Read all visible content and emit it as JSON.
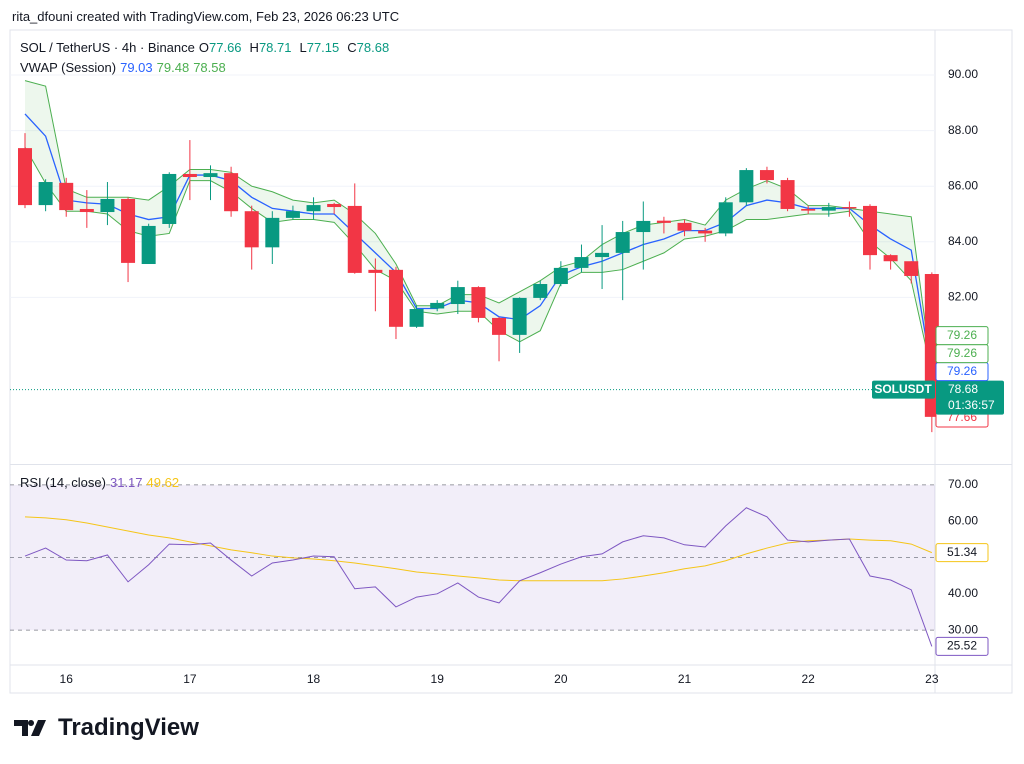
{
  "header": {
    "text": "rita_dfouni created with TradingView.com, Feb 23, 2026 06:23 UTC"
  },
  "footer": {
    "brand": "TradingView"
  },
  "chart_data": [
    {
      "type": "candlestick",
      "title": "SOL / TetherUS · 4h · Binance",
      "legend_ohlc": [
        {
          "key": "O",
          "value": 77.66
        },
        {
          "key": "H",
          "value": 78.71
        },
        {
          "key": "L",
          "value": 77.15
        },
        {
          "key": "C",
          "value": 78.68
        }
      ],
      "x": [
        null,
        null,
        "16",
        null,
        null,
        null,
        null,
        null,
        "17",
        null,
        null,
        null,
        null,
        null,
        "18",
        null,
        null,
        null,
        null,
        null,
        "19",
        null,
        null,
        null,
        null,
        null,
        "20",
        null,
        null,
        null,
        null,
        null,
        "21",
        null,
        null,
        null,
        null,
        null,
        "22",
        null,
        null,
        null,
        null,
        null,
        "23"
      ],
      "open": [
        87.37,
        85.32,
        86.12,
        85.18,
        85.07,
        85.54,
        83.2,
        84.64,
        86.44,
        86.33,
        86.47,
        85.1,
        83.8,
        84.86,
        85.1,
        85.36,
        85.29,
        82.99,
        82.99,
        80.94,
        81.6,
        81.76,
        82.37,
        81.26,
        80.65,
        81.98,
        82.48,
        83.06,
        83.45,
        83.6,
        84.35,
        84.76,
        84.68,
        84.4,
        84.3,
        85.42,
        86.58,
        86.22,
        85.18,
        85.12,
        85.25,
        85.29,
        83.52,
        83.3,
        82.84
      ],
      "high": [
        87.91,
        86.25,
        86.3,
        85.86,
        86.15,
        85.6,
        84.65,
        86.5,
        87.66,
        86.75,
        86.7,
        85.3,
        85.1,
        85.3,
        85.6,
        85.4,
        86.1,
        83.4,
        83.1,
        81.7,
        81.9,
        82.6,
        82.4,
        81.3,
        82.0,
        82.6,
        83.3,
        83.9,
        84.6,
        84.75,
        85.45,
        84.9,
        84.8,
        84.5,
        85.6,
        86.65,
        86.7,
        86.3,
        85.3,
        85.4,
        85.45,
        85.35,
        83.55,
        83.3,
        82.9
      ],
      "low": [
        85.21,
        85.1,
        84.9,
        84.5,
        84.6,
        82.55,
        83.2,
        84.5,
        85.5,
        85.5,
        84.9,
        83.0,
        83.2,
        84.8,
        84.8,
        85.0,
        82.85,
        81.5,
        80.5,
        80.9,
        81.5,
        81.4,
        81.1,
        79.7,
        80.0,
        81.9,
        82.4,
        82.9,
        82.3,
        81.9,
        83.0,
        84.3,
        84.2,
        84.0,
        84.2,
        85.3,
        86.1,
        85.1,
        85.0,
        84.9,
        84.9,
        83.0,
        83.0,
        82.5,
        77.15
      ],
      "close": [
        85.32,
        86.15,
        85.14,
        85.07,
        85.54,
        83.24,
        84.57,
        86.44,
        86.33,
        86.47,
        85.1,
        83.8,
        84.86,
        85.1,
        85.32,
        85.25,
        82.88,
        82.88,
        80.94,
        81.58,
        81.8,
        82.37,
        81.26,
        80.65,
        81.98,
        82.48,
        83.06,
        83.45,
        83.6,
        84.35,
        84.75,
        84.68,
        84.4,
        84.3,
        85.42,
        86.58,
        86.22,
        85.18,
        85.12,
        85.25,
        85.2,
        83.52,
        83.3,
        82.77,
        77.7
      ],
      "up_color": "#089981",
      "down_color": "#f23645",
      "indicator_label": "VWAP (Session)",
      "indicator_values": [
        79.03,
        79.48,
        78.58
      ],
      "series": [
        {
          "color": "#2962ff",
          "values": [
            88.6,
            87.8,
            85.5,
            85.4,
            85.35,
            85.0,
            84.8,
            84.9,
            86.4,
            86.4,
            86.2,
            85.6,
            85.2,
            85.1,
            85.0,
            85.0,
            84.3,
            83.6,
            82.9,
            81.6,
            81.6,
            81.9,
            81.8,
            81.3,
            81.2,
            81.7,
            82.8,
            83.1,
            83.3,
            83.6,
            83.9,
            84.1,
            84.4,
            84.4,
            84.7,
            85.3,
            85.5,
            85.4,
            85.2,
            85.2,
            85.2,
            84.6,
            84.1,
            83.7,
            79.26
          ]
        },
        {
          "color": "#4caf50",
          "values": [
            89.8,
            89.6,
            85.9,
            85.6,
            85.6,
            85.6,
            85.5,
            86.0,
            86.6,
            86.6,
            86.5,
            86.0,
            85.8,
            85.5,
            85.4,
            85.5,
            85.0,
            84.3,
            83.2,
            81.7,
            81.7,
            82.1,
            82.1,
            81.8,
            82.2,
            82.6,
            83.1,
            83.3,
            83.9,
            84.3,
            84.6,
            84.7,
            84.8,
            84.6,
            85.5,
            85.9,
            86.2,
            85.9,
            85.3,
            85.3,
            85.2,
            85.1,
            85.0,
            84.9,
            79.26
          ]
        },
        {
          "color": "#4caf50",
          "values": [
            87.4,
            86.1,
            85.1,
            85.1,
            85.0,
            84.4,
            84.2,
            84.3,
            86.2,
            86.2,
            85.8,
            85.2,
            84.7,
            84.8,
            84.8,
            84.7,
            83.9,
            83.0,
            82.6,
            81.5,
            81.4,
            81.5,
            81.5,
            80.8,
            80.4,
            80.8,
            82.5,
            82.9,
            82.9,
            83.0,
            83.3,
            83.6,
            84.1,
            84.2,
            84.4,
            84.8,
            84.8,
            84.9,
            85.0,
            85.0,
            85.1,
            84.0,
            83.4,
            82.6,
            79.26
          ]
        }
      ],
      "band_fill": "rgba(76,175,80,0.1)",
      "ylim": [
        76.04,
        91.62
      ],
      "yticks": [
        {
          "value": 82,
          "label": "82.00"
        },
        {
          "value": 84,
          "label": "84.00"
        },
        {
          "value": 86,
          "label": "86.00"
        },
        {
          "value": 88,
          "label": "88.00"
        },
        {
          "value": 90,
          "label": "90.00"
        }
      ],
      "price_tags": [
        {
          "value": 79.26,
          "color": "#4caf50"
        },
        {
          "value": 79.26,
          "color": "#4caf50"
        },
        {
          "value": 79.26,
          "color": "#2962ff"
        }
      ],
      "last_price": {
        "symbol": "SOLUSDT",
        "value": 78.68,
        "countdown": "01:36:57",
        "color": "#089981"
      },
      "open_tag": {
        "value": 77.66,
        "color": "#f23645"
      }
    },
    {
      "type": "line",
      "indicator_label": "RSI (14, close)",
      "indicator_values": [
        31.17,
        49.62
      ],
      "series": [
        {
          "color": "#7e57c2",
          "values": [
            50.4,
            52.6,
            49.3,
            49.1,
            50.7,
            43.3,
            48,
            53.7,
            53.5,
            54,
            49.3,
            44.9,
            48.5,
            49.3,
            50.4,
            50.2,
            41.4,
            41.9,
            36.4,
            39.1,
            40,
            43,
            39.1,
            37.5,
            43.6,
            45.8,
            48.2,
            50.2,
            51,
            54.3,
            56,
            55.4,
            53.5,
            52.9,
            58.7,
            63.7,
            61.2,
            54.8,
            54.3,
            54.8,
            55.1,
            44.9,
            43.8,
            41.1,
            25.52
          ]
        },
        {
          "color": "#f5c518",
          "values": [
            61.2,
            60.9,
            60.4,
            59.5,
            58.4,
            57.3,
            56.2,
            55.4,
            54.3,
            53.2,
            52.1,
            51.3,
            50.4,
            49.9,
            49.6,
            49.1,
            48.5,
            47.7,
            46.9,
            46,
            45.5,
            44.9,
            44.4,
            43.8,
            43.6,
            43.6,
            43.6,
            43.6,
            43.6,
            44.1,
            44.9,
            45.8,
            46.9,
            47.7,
            49.1,
            51,
            52.6,
            54,
            54.6,
            54.8,
            55.1,
            54.8,
            54.6,
            53.7,
            51.34
          ]
        }
      ],
      "band_lines": [
        70,
        50,
        30
      ],
      "band_fill": "rgba(126,87,194,0.1)",
      "ylim": [
        20.4,
        75.2
      ],
      "yticks": [
        {
          "value": 30,
          "label": "30.00"
        },
        {
          "value": 40,
          "label": "40.00"
        },
        {
          "value": 60,
          "label": "60.00"
        },
        {
          "value": 70,
          "label": "70.00"
        }
      ]
    }
  ]
}
